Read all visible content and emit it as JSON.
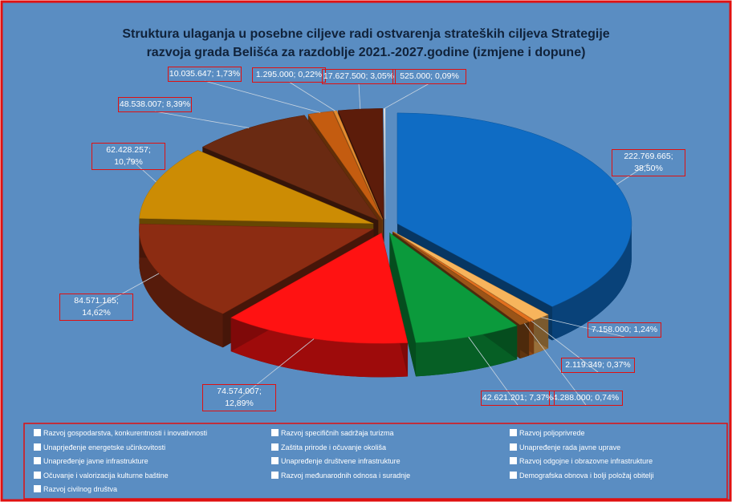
{
  "chart_data": {
    "type": "pie3d",
    "title": [
      "Struktura ulaganja u posebne ciljeve radi ostvarenja strateških ciljeva Strategije",
      "razvoja grada Belišća za razdoblje 2021.-2027.godine (izmjene i dopune)"
    ],
    "categories": [
      "Razvoj gospodarstva, konkurentnosti i inovativnosti",
      "Razvoj specifičnih sadržaja turizma",
      "Razvoj poljoprivrede",
      "Unaprjeđenje energetske učinkovitosti",
      "Zaštita prirode i očuvanje okoliša",
      "Unapređenje rada javne uprave",
      "Unapređenje javne infrastrukture",
      "Unapređenje društvene infrastrukture",
      "Razvoj odgojne i obrazovne infrastrukture",
      "Očuvanje i valorizacija kulturne baštine",
      "Razvoj međunarodnih odnosa i suradnje",
      "Demografska obnova i bolji položaj obitelji",
      "Razvoj civilnog društva"
    ],
    "values": [
      222769665,
      7158000,
      2119349,
      4288000,
      42621201,
      74574007,
      84571165,
      62428257,
      48538007,
      10035647,
      1295000,
      17627500,
      525000
    ],
    "value_labels": [
      "222.769.665; 38,50%",
      "7.158.000; 1,24%",
      "2.119.349; 0,37%",
      "4.288.000; 0,74%",
      "42.621.201; 7,37%",
      "74.574.007; 12,89%",
      "84.571.165; 14,62%",
      "62.428.257; 10,79%",
      "48.538.007; 8,39%",
      "10.035.647; 1,73%",
      "1.295.000; 0,22%",
      "17.627.500; 3,05%",
      "525.000; 0,09%"
    ],
    "colors": [
      "#0f6cc4",
      "#f7b45c",
      "#e2701e",
      "#9a5418",
      "#0b9a3c",
      "#ff1212",
      "#8c2c12",
      "#cc8c04",
      "#6a2a12",
      "#c45c10",
      "#e48c30",
      "#5c1c0a",
      "#f2f2f2"
    ],
    "legend": "bottom"
  }
}
